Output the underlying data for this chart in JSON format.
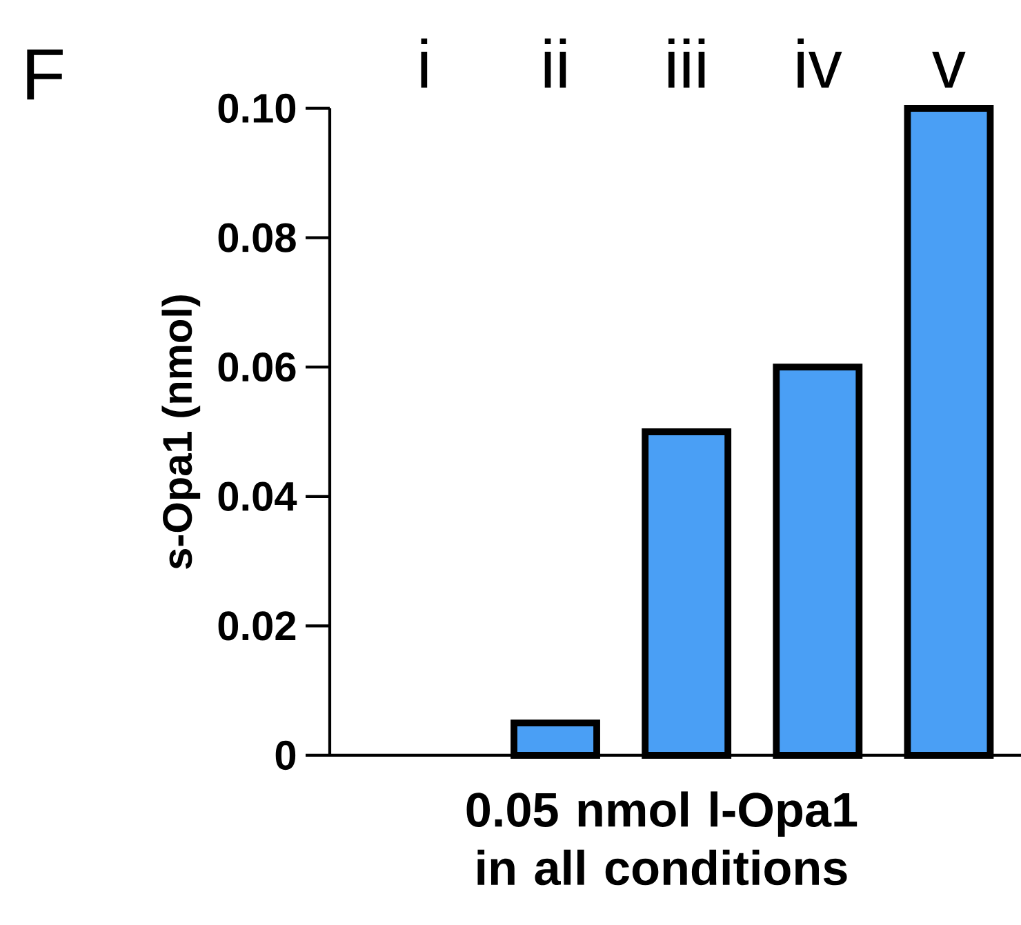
{
  "chart_data": {
    "type": "bar",
    "categories": [
      "i",
      "ii",
      "iii",
      "iv",
      "v"
    ],
    "values": [
      0,
      0.005,
      0.05,
      0.06,
      0.1
    ],
    "color": "#4a9ff5",
    "ylabel": "s-Opa1 (nmol)",
    "xlabel": "0.05 nmol l-Opa1 in all conditions",
    "annotations": [
      "F"
    ],
    "ylim": [
      0,
      0.1
    ],
    "yticks": [
      {
        "value": 0,
        "label": "0"
      },
      0.02,
      0.04,
      0.06,
      0.08,
      {
        "value": 0.1,
        "label": "0.10"
      }
    ],
    "grid": false
  }
}
